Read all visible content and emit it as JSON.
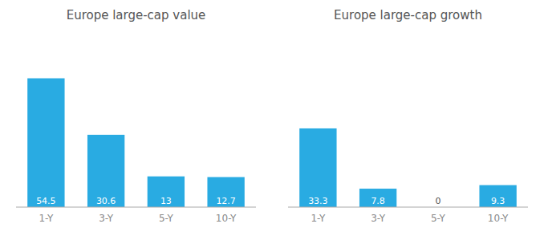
{
  "chart_data": [
    {
      "type": "bar",
      "title": "Europe large-cap value",
      "categories": [
        "1-Y",
        "3-Y",
        "5-Y",
        "10-Y"
      ],
      "values": [
        54.5,
        30.6,
        13,
        12.7
      ],
      "color": "#29abe2",
      "ylim": [
        0,
        72
      ],
      "grid": false,
      "data_labels": true,
      "tick_labels": "x"
    },
    {
      "type": "bar",
      "title": "Europe large-cap growth",
      "categories": [
        "1-Y",
        "3-Y",
        "5-Y",
        "10-Y"
      ],
      "values": [
        33.3,
        7.8,
        0,
        9.3
      ],
      "color": "#29abe2",
      "ylim": [
        0,
        72
      ],
      "grid": false,
      "data_labels": true,
      "tick_labels": "x"
    }
  ]
}
